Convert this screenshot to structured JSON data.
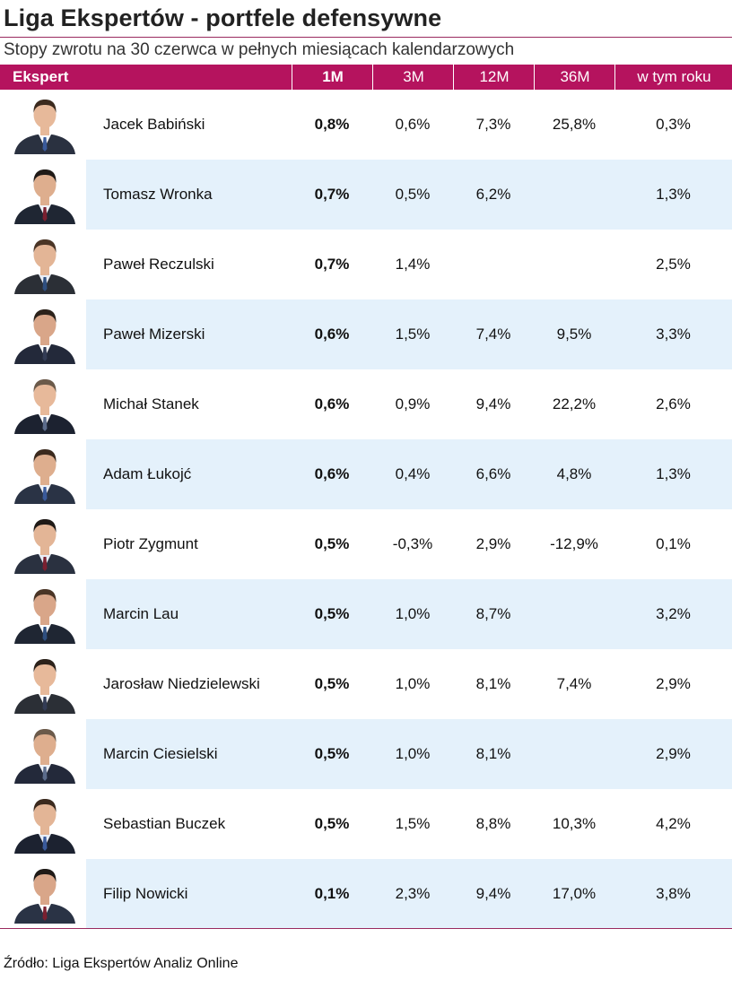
{
  "title": "Liga Ekspertów - portfele defensywne",
  "subtitle": "Stopy zwrotu na 30 czerwca w pełnych miesiącach kalendarzowych",
  "source": "Źródło: Liga Ekspertów Analiz Online",
  "colors": {
    "header_bg": "#b5135e",
    "rule": "#9a2a5e",
    "alt_row": "#e4f1fb"
  },
  "chart_data": {
    "type": "table",
    "columns": [
      "Ekspert",
      "1M",
      "3M",
      "12M",
      "36M",
      "w tym roku"
    ],
    "rows": [
      {
        "name": "Jacek Babiński",
        "m1": "0,8%",
        "m3": "0,6%",
        "m12": "7,3%",
        "m36": "25,8%",
        "ytd": "0,3%"
      },
      {
        "name": "Tomasz Wronka",
        "m1": "0,7%",
        "m3": "0,5%",
        "m12": "6,2%",
        "m36": "",
        "ytd": "1,3%"
      },
      {
        "name": "Paweł Reczulski",
        "m1": "0,7%",
        "m3": "1,4%",
        "m12": "",
        "m36": "",
        "ytd": "2,5%"
      },
      {
        "name": "Paweł Mizerski",
        "m1": "0,6%",
        "m3": "1,5%",
        "m12": "7,4%",
        "m36": "9,5%",
        "ytd": "3,3%"
      },
      {
        "name": "Michał Stanek",
        "m1": "0,6%",
        "m3": "0,9%",
        "m12": "9,4%",
        "m36": "22,2%",
        "ytd": "2,6%"
      },
      {
        "name": "Adam Łukojć",
        "m1": "0,6%",
        "m3": "0,4%",
        "m12": "6,6%",
        "m36": "4,8%",
        "ytd": "1,3%"
      },
      {
        "name": "Piotr Zygmunt",
        "m1": "0,5%",
        "m3": "-0,3%",
        "m12": "2,9%",
        "m36": "-12,9%",
        "ytd": "0,1%"
      },
      {
        "name": "Marcin Lau",
        "m1": "0,5%",
        "m3": "1,0%",
        "m12": "8,7%",
        "m36": "",
        "ytd": "3,2%"
      },
      {
        "name": "Jarosław Niedzielewski",
        "m1": "0,5%",
        "m3": "1,0%",
        "m12": "8,1%",
        "m36": "7,4%",
        "ytd": "2,9%"
      },
      {
        "name": "Marcin Ciesielski",
        "m1": "0,5%",
        "m3": "1,0%",
        "m12": "8,1%",
        "m36": "",
        "ytd": "2,9%"
      },
      {
        "name": "Sebastian Buczek",
        "m1": "0,5%",
        "m3": "1,5%",
        "m12": "8,8%",
        "m36": "10,3%",
        "ytd": "4,2%"
      },
      {
        "name": "Filip Nowicki",
        "m1": "0,1%",
        "m3": "2,3%",
        "m12": "9,4%",
        "m36": "17,0%",
        "ytd": "3,8%"
      }
    ]
  }
}
